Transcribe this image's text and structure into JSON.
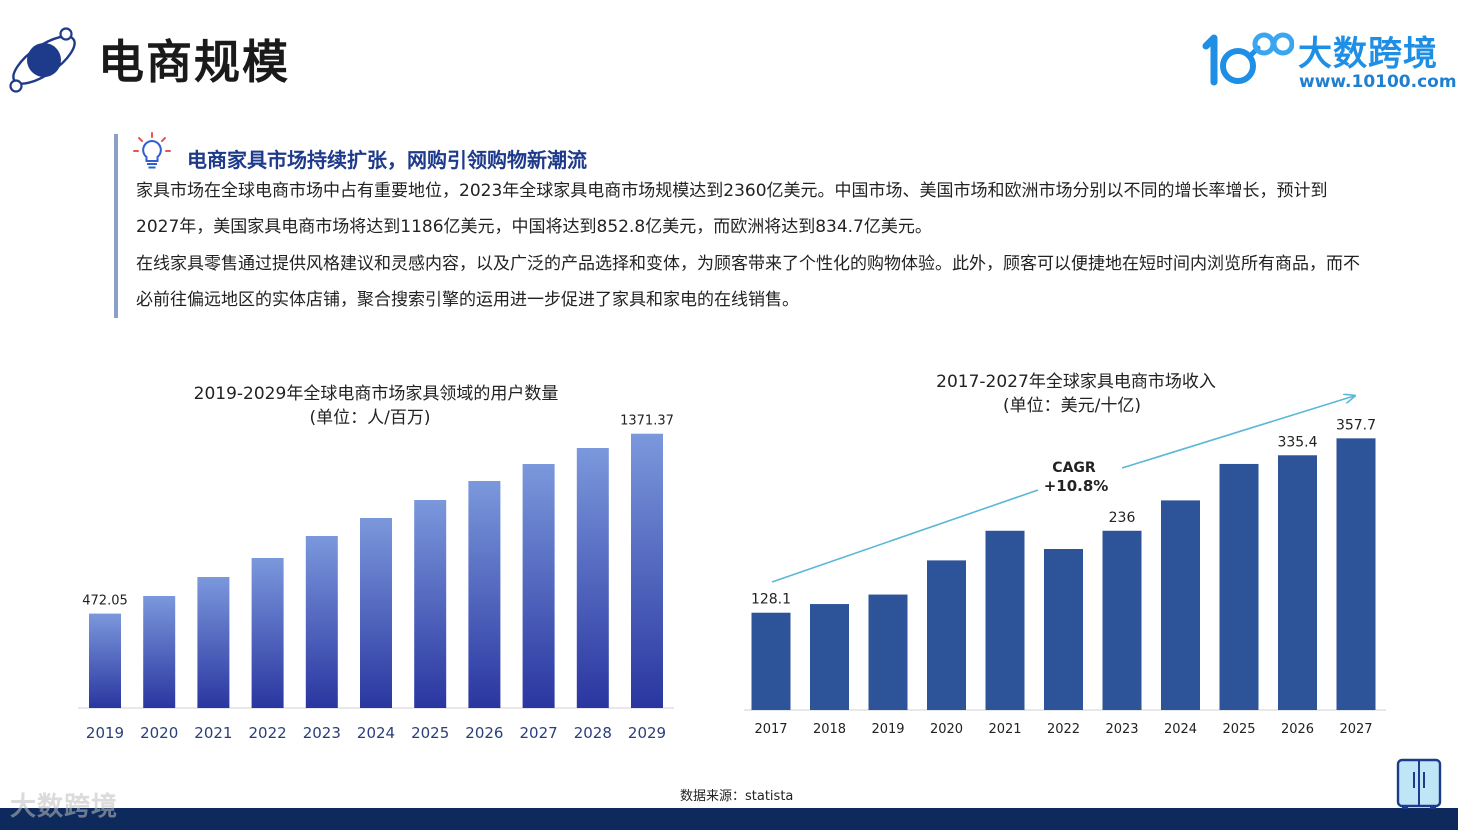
{
  "header": {
    "title": "电商规模",
    "logo_name": "大数跨境",
    "logo_url": "www.10100.com",
    "watermark": "大数跨境"
  },
  "callout": {
    "title": "电商家具市场持续扩张，网购引领购物新潮流",
    "paragraph_1": "家具市场在全球电商市场中占有重要地位，2023年全球家具电商市场规模达到2360亿美元。中国市场、美国市场和欧洲市场分别以不同的增长率增长，预计到2027年，美国家具电商市场将达到1186亿美元，中国将达到852.8亿美元，而欧洲将达到834.7亿美元。",
    "paragraph_2": "在线家具零售通过提供风格建议和灵感内容，以及广泛的产品选择和变体，为顾客带来了个性化的购物体验。此外，顾客可以便捷地在短时间内浏览所有商品，而不必前往偏远地区的实体店铺，聚合搜索引擎的运用进一步促进了家具和家电的在线销售。"
  },
  "footer": {
    "source": "数据来源：statista"
  },
  "colors": {
    "title_blue": "#1e3a8a",
    "left_bar_top": "#7b98dc",
    "left_bar_bottom": "#2a36a0",
    "right_bar": "#2d5399",
    "trend_arrow": "#5ab8d6",
    "footer_bar": "#0e2a5c",
    "logo_blue": "#1f8fe6"
  },
  "chart_data": [
    {
      "type": "bar",
      "title": "2019-2029年全球电商市场家具领域的用户数量",
      "subtitle": "(单位：人/百万)",
      "categories": [
        "2019",
        "2020",
        "2021",
        "2022",
        "2023",
        "2024",
        "2025",
        "2026",
        "2027",
        "2028",
        "2029"
      ],
      "values": [
        472.05,
        560,
        655,
        750,
        860,
        950,
        1040,
        1135,
        1220,
        1300,
        1371.37
      ],
      "data_labels": {
        "0": "472.05",
        "10": "1371.37"
      },
      "ylim": [
        0,
        1450
      ],
      "grid": false,
      "gradient": true
    },
    {
      "type": "bar",
      "title": "2017-2027年全球家具电商市场收入",
      "subtitle": "(单位：美元/十亿)",
      "categories": [
        "2017",
        "2018",
        "2019",
        "2020",
        "2021",
        "2022",
        "2023",
        "2024",
        "2025",
        "2026",
        "2027"
      ],
      "values": [
        128.1,
        139.5,
        152,
        197,
        236,
        212,
        236,
        276,
        324,
        335.4,
        357.7
      ],
      "data_labels": {
        "0": "128.1",
        "6": "236",
        "9": "335.4",
        "10": "357.7"
      },
      "ylim": [
        0,
        370
      ],
      "annotation": {
        "line1": "CAGR",
        "line2": "+10.8%"
      },
      "grid": false
    }
  ]
}
